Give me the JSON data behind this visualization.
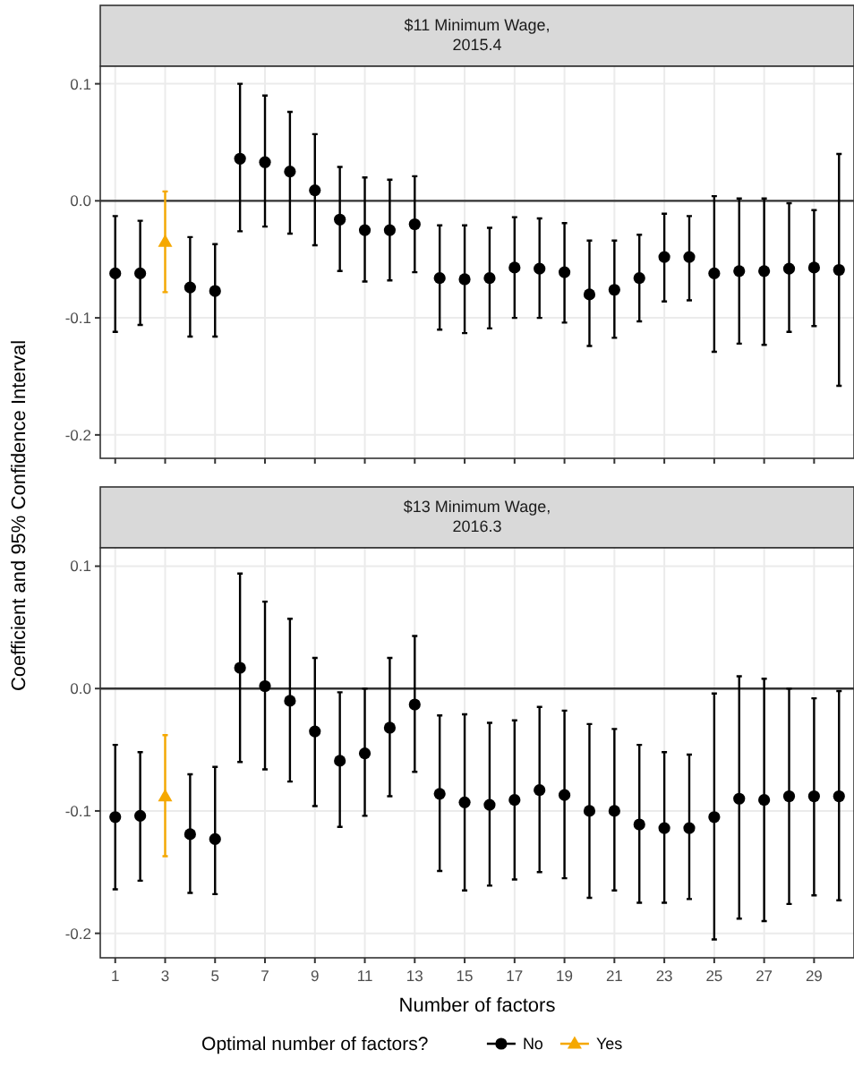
{
  "chart_data": [
    {
      "type": "scatter",
      "title": "$11 Minimum Wage,\n2015.4",
      "ylabel": "Coefficient and 95% Confidence Interval",
      "xlim": [
        0.4,
        30.6
      ],
      "xticks": [
        1,
        3,
        5,
        7,
        9,
        11,
        13,
        15,
        17,
        19,
        21,
        23,
        25,
        27,
        29
      ],
      "ylim": [
        -0.22,
        0.115
      ],
      "yticks": [
        {
          "value": -0.2,
          "label": "-0.2"
        },
        {
          "value": -0.1,
          "label": "-0.1"
        },
        {
          "value": 0,
          "label": "0.0"
        },
        {
          "value": 0.1,
          "label": "0.1"
        }
      ],
      "tick_labels": "y",
      "grid": true,
      "ref_lines": [
        {
          "axis": "y",
          "value": 0,
          "color": "#333333"
        }
      ],
      "series": [
        {
          "color": "#000000",
          "marker": "circle",
          "x": [
            1,
            2,
            4,
            5,
            6,
            7,
            8,
            9,
            10,
            11,
            12,
            13,
            14,
            15,
            16,
            17,
            18,
            19,
            20,
            21,
            22,
            23,
            24,
            25,
            26,
            27,
            28,
            29,
            30
          ],
          "values": [
            -0.062,
            -0.062,
            -0.074,
            -0.077,
            0.036,
            0.033,
            0.025,
            0.009,
            -0.016,
            -0.025,
            -0.025,
            -0.02,
            -0.066,
            -0.067,
            -0.066,
            -0.057,
            -0.058,
            -0.061,
            -0.08,
            -0.076,
            -0.066,
            -0.048,
            -0.048,
            -0.062,
            -0.06,
            -0.06,
            -0.058,
            -0.057,
            -0.059
          ],
          "errors": [
            [
              -0.112,
              -0.013
            ],
            [
              -0.106,
              -0.017
            ],
            [
              -0.116,
              -0.031
            ],
            [
              -0.116,
              -0.037
            ],
            [
              -0.026,
              0.1
            ],
            [
              -0.022,
              0.09
            ],
            [
              -0.028,
              0.076
            ],
            [
              -0.038,
              0.057
            ],
            [
              -0.06,
              0.029
            ],
            [
              -0.069,
              0.02
            ],
            [
              -0.068,
              0.018
            ],
            [
              -0.061,
              0.021
            ],
            [
              -0.11,
              -0.021
            ],
            [
              -0.113,
              -0.021
            ],
            [
              -0.109,
              -0.023
            ],
            [
              -0.1,
              -0.014
            ],
            [
              -0.1,
              -0.015
            ],
            [
              -0.104,
              -0.019
            ],
            [
              -0.124,
              -0.034
            ],
            [
              -0.117,
              -0.034
            ],
            [
              -0.103,
              -0.029
            ],
            [
              -0.086,
              -0.011
            ],
            [
              -0.085,
              -0.013
            ],
            [
              -0.129,
              0.004
            ],
            [
              -0.122,
              0.002
            ],
            [
              -0.123,
              0.002
            ],
            [
              -0.112,
              -0.002
            ],
            [
              -0.107,
              -0.008
            ],
            [
              -0.158,
              0.04
            ]
          ]
        },
        {
          "color": "#f5a800",
          "marker": "triangle",
          "x": [
            3
          ],
          "values": [
            -0.035
          ],
          "errors": [
            [
              -0.078,
              0.008
            ]
          ]
        }
      ]
    },
    {
      "type": "scatter",
      "title": "$13 Minimum Wage,\n2016.3",
      "xlabel": "Number of factors",
      "legend_title": "Optimal number of factors?",
      "legend": "bottom",
      "xlim": [
        0.4,
        30.6
      ],
      "xticks": [
        1,
        3,
        5,
        7,
        9,
        11,
        13,
        15,
        17,
        19,
        21,
        23,
        25,
        27,
        29
      ],
      "ylim": [
        -0.22,
        0.115
      ],
      "yticks": [
        {
          "value": -0.2,
          "label": "-0.2"
        },
        {
          "value": -0.1,
          "label": "-0.1"
        },
        {
          "value": 0,
          "label": "0.0"
        },
        {
          "value": 0.1,
          "label": "0.1"
        }
      ],
      "grid": true,
      "ref_lines": [
        {
          "axis": "y",
          "value": 0,
          "color": "#333333"
        }
      ],
      "series": [
        {
          "name": "No",
          "color": "#000000",
          "marker": "circle",
          "x": [
            1,
            2,
            4,
            5,
            6,
            7,
            8,
            9,
            10,
            11,
            12,
            13,
            14,
            15,
            16,
            17,
            18,
            19,
            20,
            21,
            22,
            23,
            24,
            25,
            26,
            27,
            28,
            29,
            30
          ],
          "values": [
            -0.105,
            -0.104,
            -0.119,
            -0.123,
            0.017,
            0.002,
            -0.01,
            -0.035,
            -0.059,
            -0.053,
            -0.032,
            -0.013,
            -0.086,
            -0.093,
            -0.095,
            -0.091,
            -0.083,
            -0.087,
            -0.1,
            -0.1,
            -0.111,
            -0.114,
            -0.114,
            -0.105,
            -0.09,
            -0.091,
            -0.088,
            -0.088,
            -0.088
          ],
          "errors": [
            [
              -0.164,
              -0.046
            ],
            [
              -0.157,
              -0.052
            ],
            [
              -0.167,
              -0.07
            ],
            [
              -0.168,
              -0.064
            ],
            [
              -0.06,
              0.094
            ],
            [
              -0.066,
              0.071
            ],
            [
              -0.076,
              0.057
            ],
            [
              -0.096,
              0.025
            ],
            [
              -0.113,
              -0.003
            ],
            [
              -0.104,
              0.0
            ],
            [
              -0.088,
              0.025
            ],
            [
              -0.068,
              0.043
            ],
            [
              -0.149,
              -0.022
            ],
            [
              -0.165,
              -0.021
            ],
            [
              -0.161,
              -0.028
            ],
            [
              -0.156,
              -0.026
            ],
            [
              -0.15,
              -0.015
            ],
            [
              -0.155,
              -0.018
            ],
            [
              -0.171,
              -0.029
            ],
            [
              -0.165,
              -0.033
            ],
            [
              -0.175,
              -0.046
            ],
            [
              -0.175,
              -0.052
            ],
            [
              -0.172,
              -0.054
            ],
            [
              -0.205,
              -0.004
            ],
            [
              -0.188,
              0.01
            ],
            [
              -0.19,
              0.008
            ],
            [
              -0.176,
              0.0
            ],
            [
              -0.169,
              -0.008
            ],
            [
              -0.173,
              -0.002
            ]
          ]
        },
        {
          "name": "Yes",
          "color": "#f5a800",
          "marker": "triangle",
          "x": [
            3
          ],
          "values": [
            -0.088
          ],
          "errors": [
            [
              -0.137,
              -0.038
            ]
          ]
        }
      ]
    }
  ]
}
